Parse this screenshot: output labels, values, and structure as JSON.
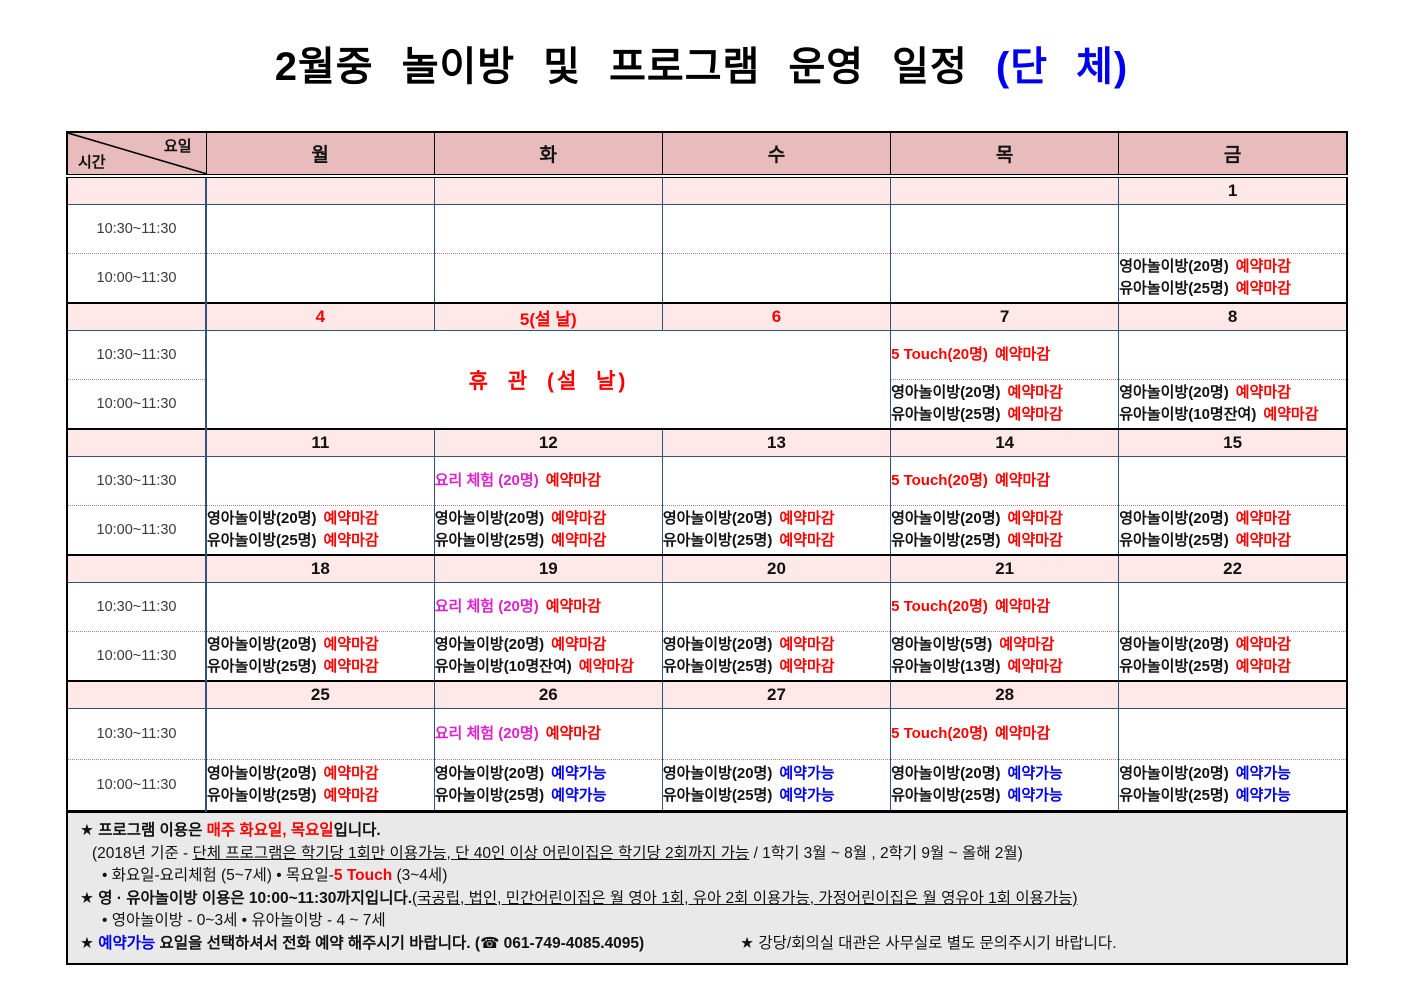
{
  "colors": {
    "red": "#ff0000",
    "blue": "#0000ee",
    "magenta": "#dd22cc",
    "black": "#111111",
    "header_bg": "#e8bcbc",
    "date_row_bg": "#ffe8e8"
  },
  "title": {
    "main": "2월중 놀이방 및 프로그램 운영 일정 ",
    "group": "(단 체)"
  },
  "table": {
    "corner": {
      "top": "요일",
      "bottom": "시간"
    },
    "day_headers": [
      "월",
      "화",
      "수",
      "목",
      "금"
    ],
    "time_labels": [
      "10:30~11:30",
      "10:00~11:30"
    ],
    "weeks": [
      {
        "dates": [
          "",
          "",
          "",
          "",
          "1"
        ],
        "date_colors": [
          "black",
          "black",
          "black",
          "black",
          "black"
        ],
        "slots_1030": [
          [],
          [],
          [],
          [],
          []
        ],
        "slots_1000": [
          [],
          [],
          [],
          [],
          [
            {
              "label": "영아놀이방(20명)",
              "label_color": "black",
              "status": "예약마감",
              "status_color": "red"
            },
            {
              "label": "유아놀이방(25명)",
              "label_color": "black",
              "status": "예약마감",
              "status_color": "red"
            }
          ]
        ]
      },
      {
        "dates": [
          "4",
          "5(설 날)",
          "6",
          "7",
          "8"
        ],
        "date_colors": [
          "red",
          "red",
          "red",
          "black",
          "black"
        ],
        "closure": {
          "span_cols": 3,
          "text": "휴 관 (설 날)",
          "color": "red"
        },
        "slots_1030": [
          null,
          null,
          null,
          [
            {
              "label": "5 Touch(20명)",
              "label_color": "red",
              "status": "예약마감",
              "status_color": "red"
            }
          ],
          []
        ],
        "slots_1000": [
          null,
          null,
          null,
          [
            {
              "label": "영아놀이방(20명)",
              "label_color": "black",
              "status": "예약마감",
              "status_color": "red"
            },
            {
              "label": "유아놀이방(25명)",
              "label_color": "black",
              "status": "예약마감",
              "status_color": "red"
            }
          ],
          [
            {
              "label": "영아놀이방(20명)",
              "label_color": "black",
              "status": "예약마감",
              "status_color": "red"
            },
            {
              "label": "유아놀이방(10명잔여)",
              "label_color": "black",
              "status": "예약마감",
              "status_color": "red"
            }
          ]
        ]
      },
      {
        "dates": [
          "11",
          "12",
          "13",
          "14",
          "15"
        ],
        "date_colors": [
          "black",
          "black",
          "black",
          "black",
          "black"
        ],
        "slots_1030": [
          [],
          [
            {
              "label": "요리 체험 (20명)",
              "label_color": "magenta",
              "status": "예약마감",
              "status_color": "red"
            }
          ],
          [],
          [
            {
              "label": "5 Touch(20명)",
              "label_color": "red",
              "status": "예약마감",
              "status_color": "red"
            }
          ],
          []
        ],
        "slots_1000": [
          [
            {
              "label": "영아놀이방(20명)",
              "label_color": "black",
              "status": "예약마감",
              "status_color": "red"
            },
            {
              "label": "유아놀이방(25명)",
              "label_color": "black",
              "status": "예약마감",
              "status_color": "red"
            }
          ],
          [
            {
              "label": "영아놀이방(20명)",
              "label_color": "black",
              "status": "예약마감",
              "status_color": "red"
            },
            {
              "label": "유아놀이방(25명)",
              "label_color": "black",
              "status": "예약마감",
              "status_color": "red"
            }
          ],
          [
            {
              "label": "영아놀이방(20명)",
              "label_color": "black",
              "status": "예약마감",
              "status_color": "red"
            },
            {
              "label": "유아놀이방(25명)",
              "label_color": "black",
              "status": "예약마감",
              "status_color": "red"
            }
          ],
          [
            {
              "label": "영아놀이방(20명)",
              "label_color": "black",
              "status": "예약마감",
              "status_color": "red"
            },
            {
              "label": "유아놀이방(25명)",
              "label_color": "black",
              "status": "예약마감",
              "status_color": "red"
            }
          ],
          [
            {
              "label": "영아놀이방(20명)",
              "label_color": "black",
              "status": "예약마감",
              "status_color": "red"
            },
            {
              "label": "유아놀이방(25명)",
              "label_color": "black",
              "status": "예약마감",
              "status_color": "red"
            }
          ]
        ]
      },
      {
        "dates": [
          "18",
          "19",
          "20",
          "21",
          "22"
        ],
        "date_colors": [
          "black",
          "black",
          "black",
          "black",
          "black"
        ],
        "slots_1030": [
          [],
          [
            {
              "label": "요리 체험 (20명)",
              "label_color": "magenta",
              "status": "예약마감",
              "status_color": "red"
            }
          ],
          [],
          [
            {
              "label": "5 Touch(20명)",
              "label_color": "red",
              "status": "예약마감",
              "status_color": "red"
            }
          ],
          []
        ],
        "slots_1000": [
          [
            {
              "label": "영아놀이방(20명)",
              "label_color": "black",
              "status": "예약마감",
              "status_color": "red"
            },
            {
              "label": "유아놀이방(25명)",
              "label_color": "black",
              "status": "예약마감",
              "status_color": "red"
            }
          ],
          [
            {
              "label": "영아놀이방(20명)",
              "label_color": "black",
              "status": "예약마감",
              "status_color": "red"
            },
            {
              "label": "유아놀이방(10명잔여)",
              "label_color": "black",
              "status": "예약마감",
              "status_color": "red"
            }
          ],
          [
            {
              "label": "영아놀이방(20명)",
              "label_color": "black",
              "status": "예약마감",
              "status_color": "red"
            },
            {
              "label": "유아놀이방(25명)",
              "label_color": "black",
              "status": "예약마감",
              "status_color": "red"
            }
          ],
          [
            {
              "label": "영아놀이방(5명)",
              "label_color": "black",
              "status": "예약마감",
              "status_color": "red"
            },
            {
              "label": "유아놀이방(13명)",
              "label_color": "black",
              "status": "예약마감",
              "status_color": "red"
            }
          ],
          [
            {
              "label": "영아놀이방(20명)",
              "label_color": "black",
              "status": "예약마감",
              "status_color": "red"
            },
            {
              "label": "유아놀이방(25명)",
              "label_color": "black",
              "status": "예약마감",
              "status_color": "red"
            }
          ]
        ]
      },
      {
        "dates": [
          "25",
          "26",
          "27",
          "28",
          ""
        ],
        "date_colors": [
          "black",
          "black",
          "black",
          "black",
          "black"
        ],
        "tall": true,
        "slots_1030": [
          [],
          [
            {
              "label": "요리 체험 (20명)",
              "label_color": "magenta",
              "status": "예약마감",
              "status_color": "red"
            }
          ],
          [],
          [
            {
              "label": "5 Touch(20명)",
              "label_color": "red",
              "status": "예약마감",
              "status_color": "red"
            }
          ],
          []
        ],
        "slots_1000": [
          [
            {
              "label": "영아놀이방(20명)",
              "label_color": "black",
              "status": "예약마감",
              "status_color": "red"
            },
            {
              "label": "유아놀이방(25명)",
              "label_color": "black",
              "status": "예약마감",
              "status_color": "red"
            }
          ],
          [
            {
              "label": "영아놀이방(20명)",
              "label_color": "black",
              "status": "예약가능",
              "status_color": "blue"
            },
            {
              "label": "유아놀이방(25명)",
              "label_color": "black",
              "status": "예약가능",
              "status_color": "blue"
            }
          ],
          [
            {
              "label": "영아놀이방(20명)",
              "label_color": "black",
              "status": "예약가능",
              "status_color": "blue"
            },
            {
              "label": "유아놀이방(25명)",
              "label_color": "black",
              "status": "예약가능",
              "status_color": "blue"
            }
          ],
          [
            {
              "label": "영아놀이방(20명)",
              "label_color": "black",
              "status": "예약가능",
              "status_color": "blue"
            },
            {
              "label": "유아놀이방(25명)",
              "label_color": "black",
              "status": "예약가능",
              "status_color": "blue"
            }
          ],
          [
            {
              "label": "영아놀이방(20명)",
              "label_color": "black",
              "status": "예약가능",
              "status_color": "blue"
            },
            {
              "label": "유아놀이방(25명)",
              "label_color": "black",
              "status": "예약가능",
              "status_color": "blue"
            }
          ]
        ]
      }
    ]
  },
  "footer": {
    "lines": [
      {
        "indent": 2,
        "segments": [
          {
            "t": "★ 프로그램 이용은 ",
            "b": true
          },
          {
            "t": " 매주 화요일, 목요일",
            "b": true,
            "c": "red"
          },
          {
            "t": "입니다.",
            "b": true
          }
        ]
      },
      {
        "indent": 14,
        "segments": [
          {
            "t": "(2018년 기준 - "
          },
          {
            "t": "단체 프로그램은 학기당 1회만 이용가능, 단 40인 이상 어린이집은 학기당 2회까지 가능",
            "u": true
          },
          {
            "t": " / 1학기 3월 ~ 8월 , 2학기 9월 ~ 올해 2월)"
          }
        ]
      },
      {
        "indent": 24,
        "segments": [
          {
            "t": "• 화요일-요리체험 (5~7세)   • 목요일-"
          },
          {
            "t": "5 Touch",
            "b": true,
            "c": "red"
          },
          {
            "t": " (3~4세)"
          }
        ]
      },
      {
        "indent": 2,
        "segments": [
          {
            "t": "★ 영 · 유아놀이방 이용은 10:00~11:30까지입니다.",
            "b": true
          },
          {
            "t": "(국공립, 법인, 민간어린이집은 월 영아 1회, 유아 2회 이용가능, 가정어린이집은 월 영유아 1회 이용가능)",
            "u": true
          }
        ]
      },
      {
        "indent": 24,
        "segments": [
          {
            "t": "• 영아놀이방 - 0~3세   • 유아놀이방 - 4 ~ 7세"
          }
        ]
      },
      {
        "indent": 2,
        "segments": [
          {
            "t": "★ ",
            "b": true
          },
          {
            "t": "예약가능",
            "b": true,
            "c": "blue"
          },
          {
            "t": " 요일을 선택하셔서 전화 예약 해주시기 바랍니다. ",
            "b": true
          },
          {
            "t": "(☎ 061-749-4085.4095)",
            "b": true
          },
          {
            "t": "★ 강당/회의실 대관은 사무실로 별도 문의주시기 바랍니다.",
            "g": 96
          }
        ]
      }
    ]
  }
}
